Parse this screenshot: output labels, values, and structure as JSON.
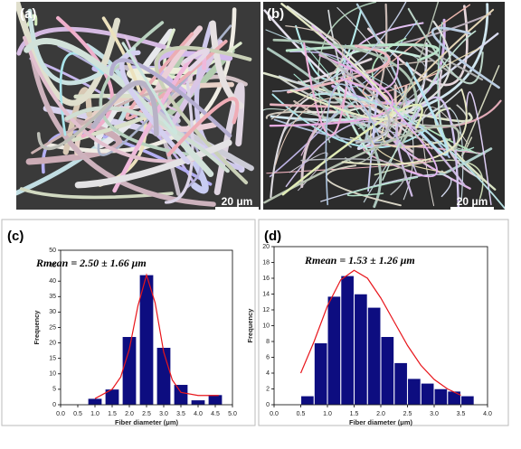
{
  "images": [
    {
      "label": "(a)",
      "scale_bar": "20 μm"
    },
    {
      "label": "(b)",
      "scale_bar": "20 μm"
    }
  ],
  "chart_data": [
    {
      "type": "histogram",
      "panel": "(c)",
      "annotation": "Rmean = 2.50 ± 1.66 μm",
      "x_label": "Fiber diameter (μm)",
      "y_label": "Frequency",
      "color": "#0d0d80",
      "bins": [
        0.75,
        1.25,
        1.75,
        2.25,
        2.75,
        3.25,
        3.75,
        4.25,
        4.75
      ],
      "values": [
        2,
        5,
        22,
        42,
        18.5,
        6.5,
        1.5,
        3.2
      ],
      "fit": {
        "color": "#e8151b",
        "x": [
          1.0,
          1.5,
          1.75,
          2.0,
          2.25,
          2.5,
          2.75,
          3.0,
          3.25,
          3.5,
          4.0,
          4.6
        ],
        "values": [
          2,
          5,
          9,
          18,
          32,
          42,
          33,
          17,
          8,
          4,
          3,
          3
        ]
      },
      "xlim": [
        0,
        5
      ],
      "ylim": [
        0,
        50
      ],
      "xticks": [
        {
          "value": 0,
          "label": "0.0"
        },
        0.5,
        {
          "value": 1,
          "label": "1.0"
        },
        1.5,
        {
          "value": 2,
          "label": "2.0"
        },
        2.5,
        {
          "value": 3,
          "label": "3.0"
        },
        3.5,
        {
          "value": 4,
          "label": "4.0"
        },
        4.5,
        {
          "value": 5,
          "label": "5.0"
        }
      ],
      "yticks": [
        0,
        5,
        10,
        15,
        20,
        25,
        30,
        35,
        40,
        45,
        50
      ]
    },
    {
      "type": "histogram",
      "panel": "(d)",
      "annotation": "Rmean = 1.53 ± 1.26 μm",
      "x_label": "Fiber diameter (μm)",
      "y_label": "Frequency",
      "color": "#0d0d80",
      "bins": [
        0.5,
        0.75,
        1.0,
        1.25,
        1.5,
        1.75,
        2.0,
        2.25,
        2.5,
        2.75,
        3.0,
        3.25,
        3.5,
        3.75
      ],
      "values": [
        1.1,
        7.8,
        13.7,
        16.3,
        14.0,
        12.3,
        8.6,
        5.3,
        3.3,
        2.7,
        2.0,
        1.7,
        1.1
      ],
      "fit": {
        "color": "#e8151b",
        "x": [
          0.5,
          0.75,
          1.0,
          1.25,
          1.5,
          1.75,
          2.0,
          2.25,
          2.5,
          2.75,
          3.0,
          3.25,
          3.5
        ],
        "values": [
          4,
          8,
          12.5,
          15.8,
          17,
          16,
          13.5,
          10.5,
          7.5,
          5,
          3.2,
          2,
          1.2
        ]
      },
      "xlim": [
        0,
        4
      ],
      "ylim": [
        0,
        20
      ],
      "xticks": [
        {
          "value": 0,
          "label": "0.0"
        },
        0.5,
        {
          "value": 1,
          "label": "1.0"
        },
        1.5,
        {
          "value": 2,
          "label": "2.0"
        },
        2.5,
        {
          "value": 3,
          "label": "3.0"
        },
        3.5,
        {
          "value": 4,
          "label": "4.0"
        }
      ],
      "yticks": [
        0,
        2,
        4,
        6,
        8,
        10,
        12,
        14,
        16,
        18,
        20
      ]
    }
  ]
}
